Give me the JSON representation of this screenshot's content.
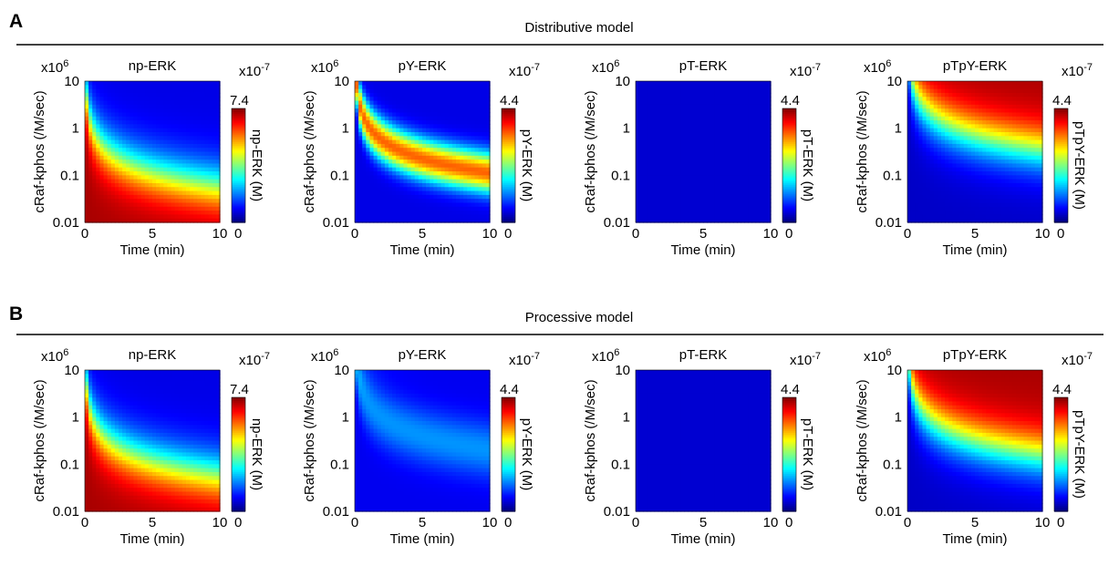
{
  "sections": [
    {
      "label": "A",
      "title": "Distributive model"
    },
    {
      "label": "B",
      "title": "Processive model"
    }
  ],
  "axes": {
    "xlabel": "Time (min)",
    "ylabel": "cRaf-kphos (/M/sec)",
    "y_multiplier": {
      "base": "x10",
      "exp": "6"
    },
    "xticks": [
      0,
      5,
      10
    ],
    "yticks": [
      "10",
      "1",
      "0.1",
      "0.01"
    ]
  },
  "colormap": "jet",
  "colors": {
    "background": "#ffffff",
    "text": "#000000",
    "divider": "#000000"
  },
  "chart_data": [
    {
      "type": "heatmap",
      "section": "A",
      "title": "np-ERK",
      "xlim": [
        0,
        10
      ],
      "ylim": [
        0.01,
        10
      ],
      "yscale": "log",
      "cbar_label": "np-ERK (M)",
      "cbar_max": "7.4",
      "cbar_min": "0",
      "cbar_exp": {
        "base": "x10",
        "exp": "-7"
      },
      "pattern": "np"
    },
    {
      "type": "heatmap",
      "section": "A",
      "title": "pY-ERK",
      "xlim": [
        0,
        10
      ],
      "ylim": [
        0.01,
        10
      ],
      "yscale": "log",
      "cbar_label": "pY-ERK (M)",
      "cbar_max": "4.4",
      "cbar_min": "0",
      "cbar_exp": {
        "base": "x10",
        "exp": "-7"
      },
      "pattern": "pYdist"
    },
    {
      "type": "heatmap",
      "section": "A",
      "title": "pT-ERK",
      "xlim": [
        0,
        10
      ],
      "ylim": [
        0.01,
        10
      ],
      "yscale": "log",
      "cbar_label": "pT-ERK (M)",
      "cbar_max": "4.4",
      "cbar_min": "0",
      "cbar_exp": {
        "base": "x10",
        "exp": "-7"
      },
      "pattern": "zero"
    },
    {
      "type": "heatmap",
      "section": "A",
      "title": "pTpY-ERK",
      "xlim": [
        0,
        10
      ],
      "ylim": [
        0.01,
        10
      ],
      "yscale": "log",
      "cbar_label": "pTpY-ERK (M)",
      "cbar_max": "4.4",
      "cbar_min": "0",
      "cbar_exp": {
        "base": "x10",
        "exp": "-7"
      },
      "pattern": "pp_dist"
    },
    {
      "type": "heatmap",
      "section": "B",
      "title": "np-ERK",
      "xlim": [
        0,
        10
      ],
      "ylim": [
        0.01,
        10
      ],
      "yscale": "log",
      "cbar_label": "np-ERK (M)",
      "cbar_max": "7.4",
      "cbar_min": "0",
      "cbar_exp": {
        "base": "x10",
        "exp": "-7"
      },
      "pattern": "np"
    },
    {
      "type": "heatmap",
      "section": "B",
      "title": "pY-ERK",
      "xlim": [
        0,
        10
      ],
      "ylim": [
        0.01,
        10
      ],
      "yscale": "log",
      "cbar_label": "pY-ERK (M)",
      "cbar_max": "4.4",
      "cbar_min": "0",
      "cbar_exp": {
        "base": "x10",
        "exp": "-7"
      },
      "pattern": "pYproc"
    },
    {
      "type": "heatmap",
      "section": "B",
      "title": "pT-ERK",
      "xlim": [
        0,
        10
      ],
      "ylim": [
        0.01,
        10
      ],
      "yscale": "log",
      "cbar_label": "pT-ERK (M)",
      "cbar_max": "4.4",
      "cbar_min": "0",
      "cbar_exp": {
        "base": "x10",
        "exp": "-7"
      },
      "pattern": "zero"
    },
    {
      "type": "heatmap",
      "section": "B",
      "title": "pTpY-ERK",
      "xlim": [
        0,
        10
      ],
      "ylim": [
        0.01,
        10
      ],
      "yscale": "log",
      "cbar_label": "pTpY-ERK (M)",
      "cbar_max": "4.4",
      "cbar_min": "0",
      "cbar_exp": {
        "base": "x10",
        "exp": "-7"
      },
      "pattern": "pp_proc"
    }
  ]
}
